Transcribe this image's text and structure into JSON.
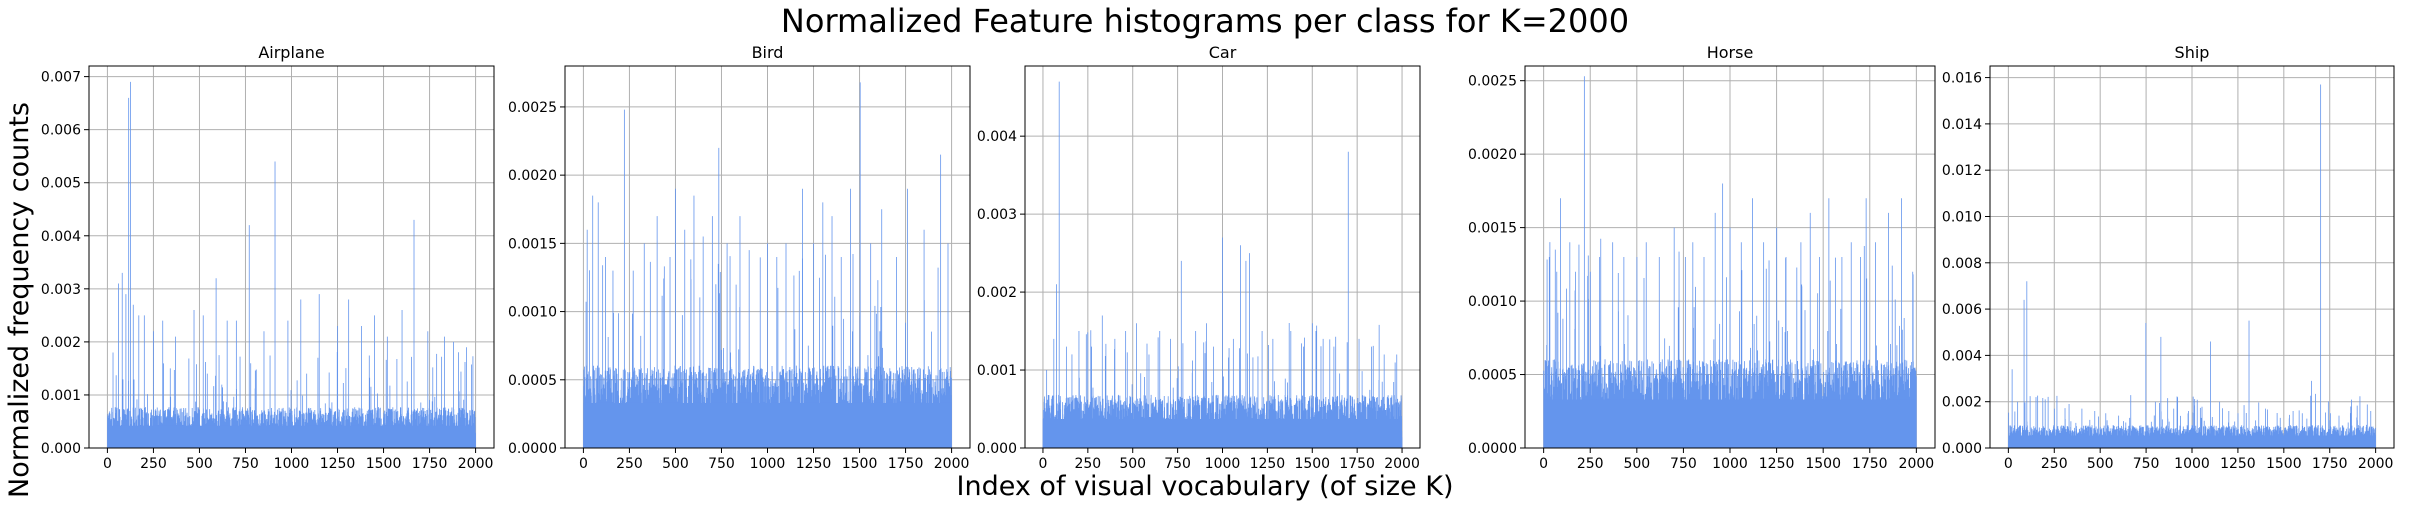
{
  "figure": {
    "suptitle": "Normalized Feature histograms per class for K=2000",
    "xlabel": "Index of visual vocabulary (of size K)",
    "ylabel": "Normalized frequency counts",
    "bar_color": "#6495ED",
    "grid_color": "#b0b0b0"
  },
  "chart_data": [
    {
      "type": "bar",
      "title": "Airplane",
      "xlim": [
        -100,
        2100
      ],
      "ylim": [
        0,
        0.0072
      ],
      "xticks": [
        0,
        250,
        500,
        750,
        1000,
        1250,
        1500,
        1750,
        2000
      ],
      "yticks": [
        0.0,
        0.001,
        0.002,
        0.003,
        0.004,
        0.005,
        0.006,
        0.007
      ],
      "yticklabels": [
        "0.000",
        "0.001",
        "0.002",
        "0.003",
        "0.004",
        "0.005",
        "0.006",
        "0.007"
      ],
      "grid": true,
      "bins": 2000,
      "baseline": 0.0007,
      "spikes": [
        [
          30,
          0.0018
        ],
        [
          60,
          0.0031
        ],
        [
          80,
          0.0033
        ],
        [
          100,
          0.0029
        ],
        [
          115,
          0.0066
        ],
        [
          125,
          0.0069
        ],
        [
          140,
          0.0027
        ],
        [
          170,
          0.0025
        ],
        [
          200,
          0.0025
        ],
        [
          250,
          0.0022
        ],
        [
          300,
          0.0024
        ],
        [
          370,
          0.0021
        ],
        [
          470,
          0.0026
        ],
        [
          520,
          0.0025
        ],
        [
          590,
          0.0032
        ],
        [
          650,
          0.0024
        ],
        [
          700,
          0.0024
        ],
        [
          770,
          0.0042
        ],
        [
          850,
          0.0022
        ],
        [
          910,
          0.0054
        ],
        [
          980,
          0.0024
        ],
        [
          1050,
          0.0028
        ],
        [
          1150,
          0.0029
        ],
        [
          1250,
          0.0023
        ],
        [
          1310,
          0.0028
        ],
        [
          1380,
          0.0023
        ],
        [
          1450,
          0.0025
        ],
        [
          1520,
          0.0021
        ],
        [
          1600,
          0.0026
        ],
        [
          1665,
          0.0043
        ],
        [
          1740,
          0.0022
        ],
        [
          1830,
          0.0021
        ],
        [
          1880,
          0.002
        ],
        [
          1950,
          0.0019
        ]
      ]
    },
    {
      "type": "bar",
      "title": "Bird",
      "xlim": [
        -100,
        2100
      ],
      "ylim": [
        0,
        0.0028
      ],
      "xticks": [
        0,
        250,
        500,
        750,
        1000,
        1250,
        1500,
        1750,
        2000
      ],
      "yticks": [
        0.0,
        0.0005,
        0.001,
        0.0015,
        0.002,
        0.0025
      ],
      "yticklabels": [
        "0.0000",
        "0.0005",
        "0.0010",
        "0.0015",
        "0.0020",
        "0.0025"
      ],
      "grid": true,
      "bins": 2000,
      "baseline": 0.00055,
      "spikes": [
        [
          20,
          0.0016
        ],
        [
          50,
          0.00185
        ],
        [
          80,
          0.0018
        ],
        [
          120,
          0.0014
        ],
        [
          160,
          0.0013
        ],
        [
          222,
          0.00248
        ],
        [
          270,
          0.0013
        ],
        [
          330,
          0.0015
        ],
        [
          400,
          0.0017
        ],
        [
          470,
          0.0014
        ],
        [
          500,
          0.0019
        ],
        [
          550,
          0.0016
        ],
        [
          600,
          0.00185
        ],
        [
          650,
          0.00155
        ],
        [
          700,
          0.0017
        ],
        [
          735,
          0.0022
        ],
        [
          780,
          0.0015
        ],
        [
          850,
          0.0017
        ],
        [
          900,
          0.00145
        ],
        [
          1000,
          0.0015
        ],
        [
          1050,
          0.0014
        ],
        [
          1100,
          0.0015
        ],
        [
          1190,
          0.0019
        ],
        [
          1250,
          0.0015
        ],
        [
          1300,
          0.0018
        ],
        [
          1350,
          0.0017
        ],
        [
          1400,
          0.0014
        ],
        [
          1450,
          0.0019
        ],
        [
          1503,
          0.00268
        ],
        [
          1560,
          0.0015
        ],
        [
          1620,
          0.00175
        ],
        [
          1700,
          0.0014
        ],
        [
          1760,
          0.0019
        ],
        [
          1850,
          0.0016
        ],
        [
          1940,
          0.00215
        ],
        [
          1980,
          0.0015
        ]
      ]
    },
    {
      "type": "bar",
      "title": "Car",
      "xlim": [
        -100,
        2100
      ],
      "ylim": [
        0,
        0.0049
      ],
      "xticks": [
        0,
        250,
        500,
        750,
        1000,
        1250,
        1500,
        1750,
        2000
      ],
      "yticks": [
        0.0,
        0.001,
        0.002,
        0.003,
        0.004
      ],
      "yticklabels": [
        "0.000",
        "0.001",
        "0.002",
        "0.003",
        "0.004"
      ],
      "grid": true,
      "bins": 2000,
      "baseline": 0.00062,
      "spikes": [
        [
          20,
          0.001
        ],
        [
          60,
          0.0014
        ],
        [
          75,
          0.0021
        ],
        [
          90,
          0.0047
        ],
        [
          130,
          0.0013
        ],
        [
          200,
          0.0015
        ],
        [
          270,
          0.0013
        ],
        [
          330,
          0.0017
        ],
        [
          400,
          0.0014
        ],
        [
          460,
          0.0015
        ],
        [
          520,
          0.0016
        ],
        [
          590,
          0.0012
        ],
        [
          650,
          0.0015
        ],
        [
          710,
          0.0014
        ],
        [
          770,
          0.0024
        ],
        [
          850,
          0.0015
        ],
        [
          910,
          0.0016
        ],
        [
          950,
          0.0013
        ],
        [
          1000,
          0.0027
        ],
        [
          1060,
          0.0014
        ],
        [
          1100,
          0.0026
        ],
        [
          1130,
          0.0024
        ],
        [
          1150,
          0.0025
        ],
        [
          1220,
          0.0015
        ],
        [
          1280,
          0.0014
        ],
        [
          1380,
          0.0015
        ],
        [
          1450,
          0.0013
        ],
        [
          1500,
          0.0016
        ],
        [
          1560,
          0.0014
        ],
        [
          1620,
          0.0013
        ],
        [
          1700,
          0.0038
        ],
        [
          1760,
          0.0014
        ],
        [
          1830,
          0.0013
        ],
        [
          1900,
          0.0012
        ],
        [
          1970,
          0.0012
        ]
      ]
    },
    {
      "type": "bar",
      "title": "Horse",
      "xlim": [
        -100,
        2100
      ],
      "ylim": [
        0,
        0.0026
      ],
      "xticks": [
        0,
        250,
        500,
        750,
        1000,
        1250,
        1500,
        1750,
        2000
      ],
      "yticks": [
        0.0,
        0.0005,
        0.001,
        0.0015,
        0.002,
        0.0025
      ],
      "yticklabels": [
        "0.0000",
        "0.0005",
        "0.0010",
        "0.0015",
        "0.0020",
        "0.0025"
      ],
      "grid": true,
      "bins": 2000,
      "baseline": 0.00055,
      "spikes": [
        [
          30,
          0.0013
        ],
        [
          70,
          0.0012
        ],
        [
          90,
          0.0017
        ],
        [
          140,
          0.0014
        ],
        [
          170,
          0.0012
        ],
        [
          218,
          0.00253
        ],
        [
          250,
          0.0012
        ],
        [
          300,
          0.0013
        ],
        [
          370,
          0.0014
        ],
        [
          430,
          0.0013
        ],
        [
          500,
          0.0013
        ],
        [
          550,
          0.0014
        ],
        [
          620,
          0.0013
        ],
        [
          700,
          0.0015
        ],
        [
          760,
          0.0013
        ],
        [
          800,
          0.0014
        ],
        [
          860,
          0.0013
        ],
        [
          920,
          0.0016
        ],
        [
          960,
          0.0018
        ],
        [
          1000,
          0.0015
        ],
        [
          1060,
          0.0014
        ],
        [
          1120,
          0.0017
        ],
        [
          1180,
          0.0014
        ],
        [
          1250,
          0.0015
        ],
        [
          1300,
          0.0013
        ],
        [
          1380,
          0.0014
        ],
        [
          1430,
          0.0016
        ],
        [
          1480,
          0.0013
        ],
        [
          1530,
          0.0017
        ],
        [
          1600,
          0.0013
        ],
        [
          1650,
          0.0014
        ],
        [
          1700,
          0.0013
        ],
        [
          1730,
          0.0017
        ],
        [
          1780,
          0.0014
        ],
        [
          1850,
          0.0016
        ],
        [
          1920,
          0.0017
        ],
        [
          1980,
          0.0012
        ]
      ]
    },
    {
      "type": "bar",
      "title": "Ship",
      "xlim": [
        -100,
        2100
      ],
      "ylim": [
        0,
        0.0165
      ],
      "xticks": [
        0,
        250,
        500,
        750,
        1000,
        1250,
        1500,
        1750,
        2000
      ],
      "yticks": [
        0.0,
        0.002,
        0.004,
        0.006,
        0.008,
        0.01,
        0.012,
        0.014,
        0.016
      ],
      "yticklabels": [
        "0.000",
        "0.002",
        "0.004",
        "0.006",
        "0.008",
        "0.010",
        "0.012",
        "0.014",
        "0.016"
      ],
      "grid": true,
      "bins": 2000,
      "baseline": 0.0009,
      "spikes": [
        [
          20,
          0.0034
        ],
        [
          50,
          0.002
        ],
        [
          85,
          0.0064
        ],
        [
          100,
          0.0072
        ],
        [
          150,
          0.0022
        ],
        [
          200,
          0.0021
        ],
        [
          250,
          0.0017
        ],
        [
          330,
          0.0019
        ],
        [
          400,
          0.0017
        ],
        [
          470,
          0.0016
        ],
        [
          530,
          0.0015
        ],
        [
          600,
          0.0014
        ],
        [
          660,
          0.0013
        ],
        [
          748,
          0.0054
        ],
        [
          800,
          0.002
        ],
        [
          830,
          0.0048
        ],
        [
          900,
          0.0017
        ],
        [
          980,
          0.0016
        ],
        [
          1050,
          0.0013
        ],
        [
          1100,
          0.0046
        ],
        [
          1150,
          0.002
        ],
        [
          1200,
          0.0016
        ],
        [
          1250,
          0.0015
        ],
        [
          1310,
          0.0055
        ],
        [
          1400,
          0.0017
        ],
        [
          1480,
          0.0013
        ],
        [
          1550,
          0.0016
        ],
        [
          1600,
          0.0015
        ],
        [
          1650,
          0.0029
        ],
        [
          1700,
          0.0157
        ],
        [
          1750,
          0.0012
        ],
        [
          1800,
          0.0014
        ],
        [
          1850,
          0.0011
        ],
        [
          1900,
          0.0012
        ],
        [
          1950,
          0.001
        ]
      ]
    }
  ]
}
